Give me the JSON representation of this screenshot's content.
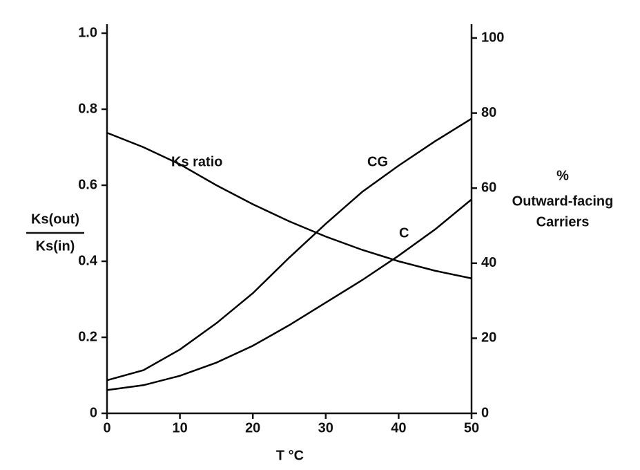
{
  "chart_data": {
    "type": "line",
    "x": [
      0,
      5,
      10,
      15,
      20,
      25,
      30,
      35,
      40,
      45,
      50
    ],
    "xlim": [
      0,
      50
    ],
    "xticks": [
      0,
      10,
      20,
      30,
      40,
      50
    ],
    "xlabel": "T °C",
    "ylabel": {
      "numerator": "Ks(out)",
      "denominator": "Ks(in)"
    },
    "y2label": [
      "%",
      "Outward-facing",
      "Carriers"
    ],
    "ylim": [
      0,
      1
    ],
    "yticks": [
      0,
      0.2,
      0.4,
      0.6,
      0.8,
      {
        "value": 1,
        "label": "1.0"
      }
    ],
    "y2lim": [
      0,
      100
    ],
    "y2ticks": [
      0,
      20,
      40,
      60,
      80,
      100
    ],
    "series": [
      {
        "name": "Ks ratio",
        "color": "#000000",
        "values": [
          0.738,
          0.7,
          0.655,
          0.6,
          0.55,
          0.505,
          0.465,
          0.43,
          0.4,
          0.375,
          0.355
        ]
      },
      {
        "name": "CG",
        "color": "#000000",
        "axis": "y2",
        "values": [
          8.8,
          11.5,
          17,
          24,
          32,
          41.5,
          50.5,
          59,
          66,
          72.5,
          78.5
        ]
      },
      {
        "name": "C",
        "color": "#000000",
        "axis": "y2",
        "values": [
          6.2,
          7.5,
          10,
          13.5,
          18,
          23.5,
          29.5,
          35.5,
          42,
          49,
          57
        ]
      }
    ]
  }
}
